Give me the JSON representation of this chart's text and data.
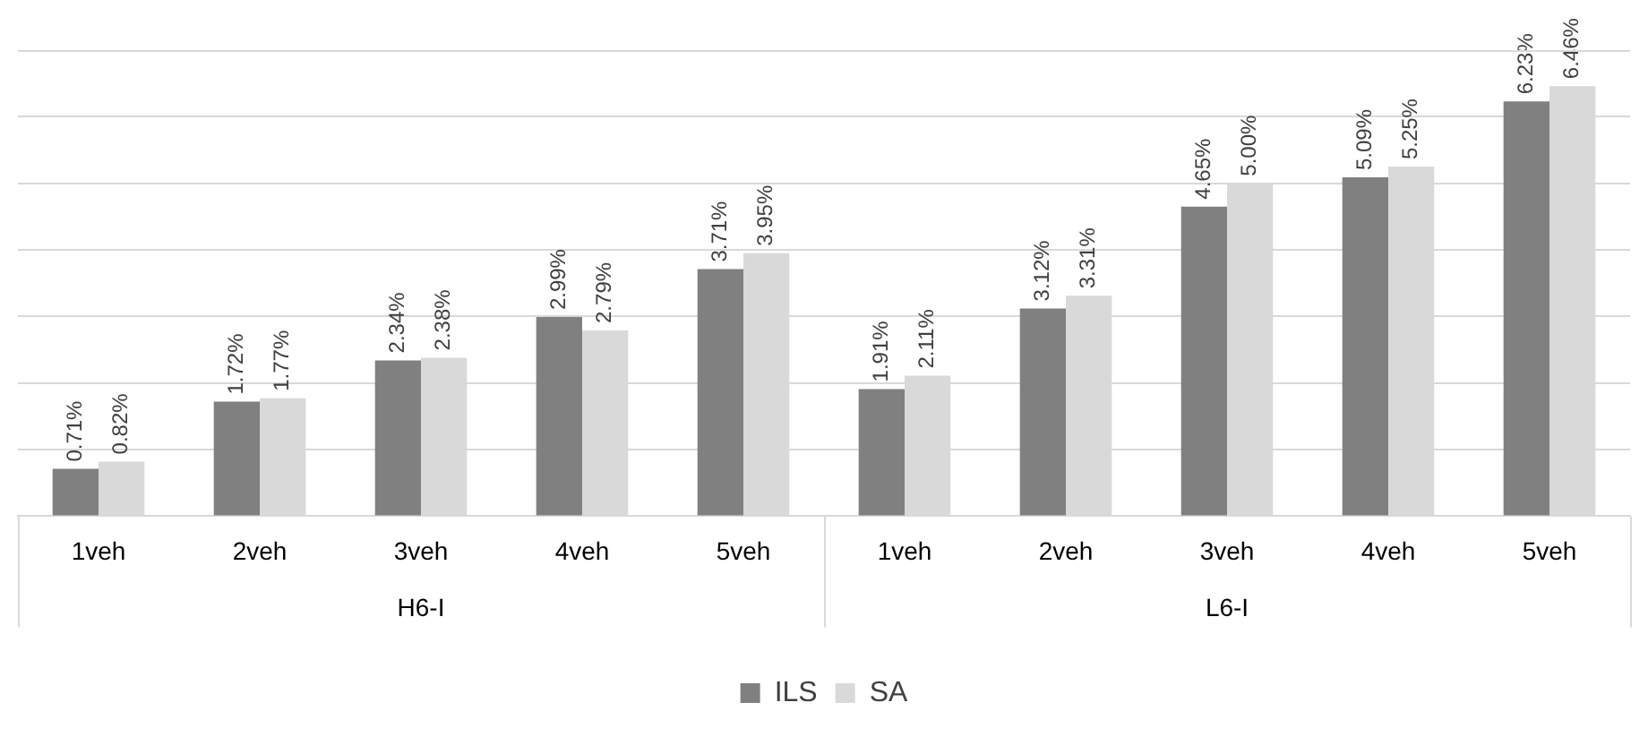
{
  "chart_data": {
    "type": "bar",
    "categories": [
      "1veh",
      "2veh",
      "3veh",
      "4veh",
      "5veh",
      "1veh",
      "2veh",
      "3veh",
      "4veh",
      "5veh"
    ],
    "annotations": [
      "H6-I",
      "L6-I"
    ],
    "series": [
      {
        "name": "ILS",
        "color": "#808080",
        "values": [
          0.71,
          1.72,
          2.34,
          2.99,
          3.71,
          1.91,
          3.12,
          4.65,
          5.09,
          6.23
        ],
        "value_labels": [
          "0.71%",
          "1.72%",
          "2.34%",
          "2.99%",
          "3.71%",
          "1.91%",
          "3.12%",
          "4.65%",
          "5.09%",
          "6.23%"
        ]
      },
      {
        "name": "SA",
        "color": "#d9d9d9",
        "values": [
          0.82,
          1.77,
          2.38,
          2.79,
          3.95,
          2.11,
          3.31,
          5.0,
          5.25,
          6.46
        ],
        "value_labels": [
          "0.82%",
          "1.77%",
          "2.38%",
          "2.79%",
          "3.95%",
          "2.11%",
          "3.31%",
          "5.00%",
          "5.25%",
          "6.46%"
        ]
      }
    ],
    "ylim": [
      0,
      7
    ],
    "yticks": [
      {
        "value": 0,
        "label": null
      },
      {
        "value": 1,
        "label": null
      },
      {
        "value": 2,
        "label": null
      },
      {
        "value": 3,
        "label": null
      },
      {
        "value": 4,
        "label": null
      },
      {
        "value": 5,
        "label": null
      },
      {
        "value": 6,
        "label": null
      }
    ],
    "grid": "y",
    "tick_labels": "x",
    "legend": "bottom"
  }
}
